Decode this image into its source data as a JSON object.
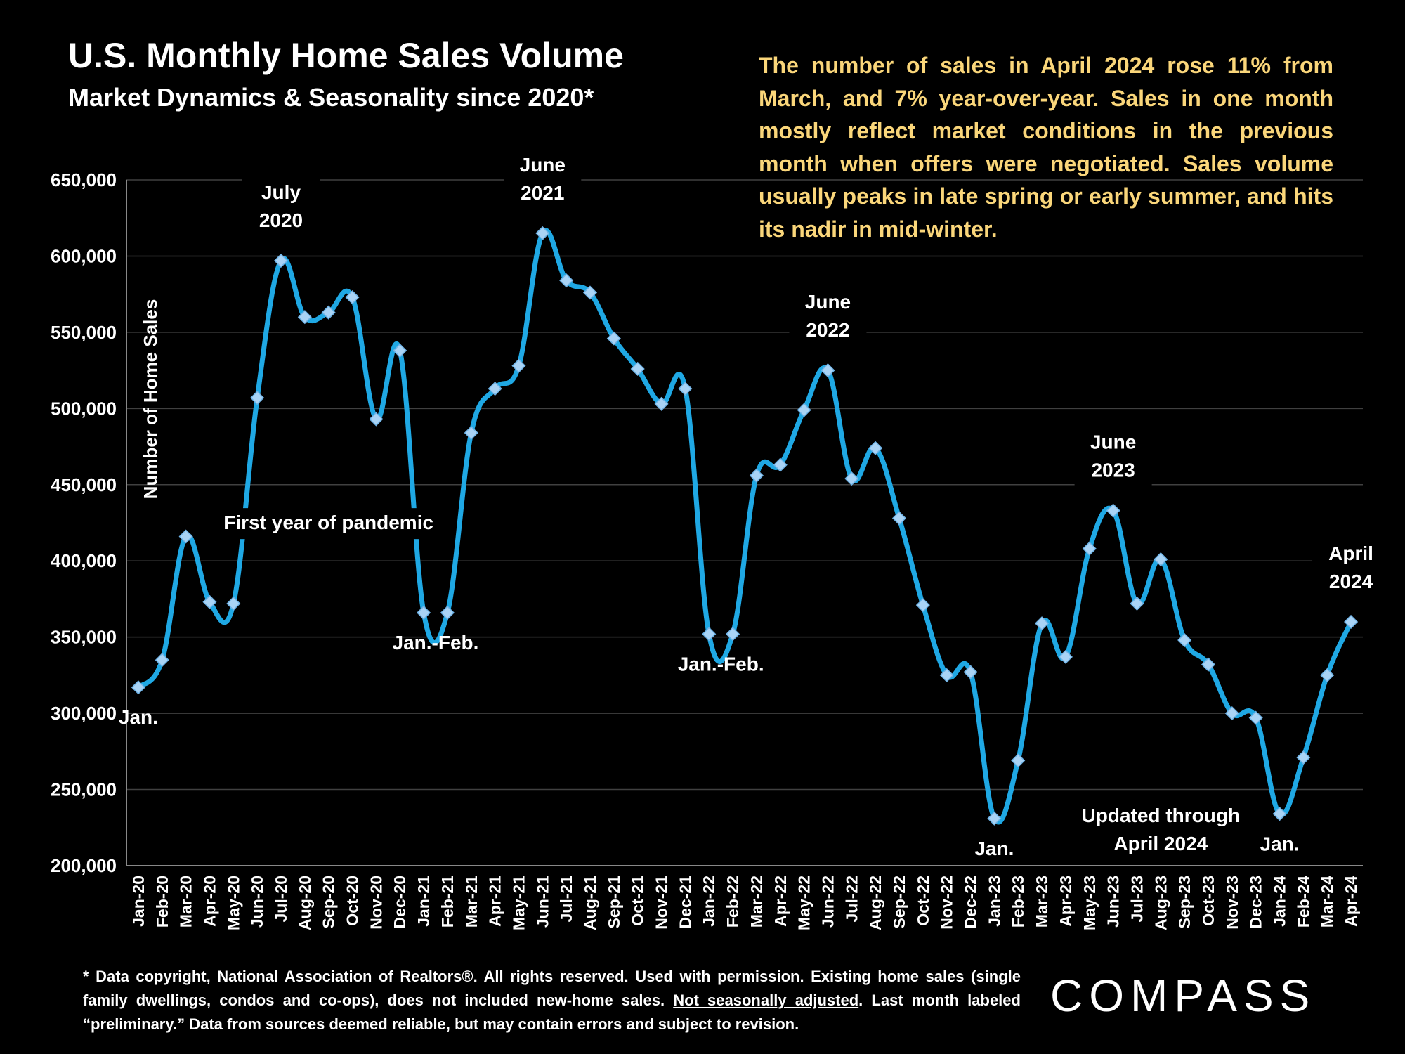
{
  "header": {
    "title": "U.S. Monthly Home Sales Volume",
    "subtitle": "Market Dynamics & Seasonality since 2020*"
  },
  "commentary": "The number of sales in April 2024 rose 11% from March, and 7% year-over-year. Sales in one month mostly reflect market conditions in the previous month when offers were negotiated. Sales volume usually peaks in late spring or early summer, and hits its nadir in mid-winter.",
  "footnote": {
    "part1": "* Data copyright, National Association of Realtors®. All rights reserved. Used with permission. Existing home sales (single family dwellings, condos and co-ops), does not included new-home sales. ",
    "underlined": "Not seasonally adjusted",
    "part2": ". Last month labeled “preliminary.” Data from sources deemed reliable, but may contain errors and subject to revision."
  },
  "logo": "COMPASS",
  "colors": {
    "line": "#1fa8e4",
    "marker": "#a9d3f5",
    "commentary": "#fad67a",
    "grid": "#404040"
  },
  "chart_data": {
    "type": "line",
    "ylabel": "Number of Home Sales",
    "ylim": [
      200000,
      650000
    ],
    "yticks": [
      200000,
      250000,
      300000,
      350000,
      400000,
      450000,
      500000,
      550000,
      600000,
      650000
    ],
    "ytick_labels": [
      "200,000",
      "250,000",
      "300,000",
      "350,000",
      "400,000",
      "450,000",
      "500,000",
      "550,000",
      "600,000",
      "650,000"
    ],
    "grid": true,
    "x": [
      "Jan-20",
      "Feb-20",
      "Mar-20",
      "Apr-20",
      "May-20",
      "Jun-20",
      "Jul-20",
      "Aug-20",
      "Sep-20",
      "Oct-20",
      "Nov-20",
      "Dec-20",
      "Jan-21",
      "Feb-21",
      "Mar-21",
      "Apr-21",
      "May-21",
      "Jun-21",
      "Jul-21",
      "Aug-21",
      "Sep-21",
      "Oct-21",
      "Nov-21",
      "Dec-21",
      "Jan-22",
      "Feb-22",
      "Mar-22",
      "Apr-22",
      "May-22",
      "Jun-22",
      "Jul-22",
      "Aug-22",
      "Sep-22",
      "Oct-22",
      "Nov-22",
      "Dec-22",
      "Jan-23",
      "Feb-23",
      "Mar-23",
      "Apr-23",
      "May-23",
      "Jun-23",
      "Jul-23",
      "Aug-23",
      "Sep-23",
      "Oct-23",
      "Nov-23",
      "Dec-23",
      "Jan-24",
      "Feb-24",
      "Mar-24",
      "Apr-24"
    ],
    "series": [
      {
        "values": [
          317000,
          335000,
          416000,
          373000,
          372000,
          507000,
          597000,
          560000,
          563000,
          573000,
          493000,
          538000,
          366000,
          366000,
          484000,
          513000,
          528000,
          615000,
          584000,
          576000,
          546000,
          526000,
          503000,
          513000,
          352000,
          352000,
          456000,
          463000,
          499000,
          525000,
          454000,
          474000,
          428000,
          371000,
          325000,
          327000,
          231000,
          269000,
          359000,
          337000,
          408000,
          433000,
          372000,
          401000,
          348000,
          332000,
          300000,
          297000,
          234000,
          271000,
          325000,
          360000
        ]
      }
    ],
    "annotations": [
      {
        "index": 6,
        "value": 597000,
        "lines": [
          "July",
          "2020"
        ]
      },
      {
        "index": 17,
        "value": 615000,
        "lines": [
          "June",
          "2021"
        ]
      },
      {
        "index": 29,
        "value": 525000,
        "lines": [
          "June",
          "2022"
        ]
      },
      {
        "index": 41,
        "value": 433000,
        "lines": [
          "June",
          "2023"
        ]
      },
      {
        "index": 51,
        "value": 360000,
        "lines": [
          "April",
          "2024"
        ]
      },
      {
        "index": 0,
        "value": 317000,
        "lines": [
          "Jan."
        ]
      },
      {
        "index": 12.5,
        "value": 366000,
        "lines": [
          "Jan.-Feb."
        ]
      },
      {
        "index": 24.5,
        "value": 352000,
        "lines": [
          "Jan.-Feb."
        ]
      },
      {
        "index": 36,
        "value": 231000,
        "lines": [
          "Jan."
        ]
      },
      {
        "index": 48,
        "value": 234000,
        "lines": [
          "Jan."
        ]
      },
      {
        "index": 8,
        "value": 430000,
        "lines": [
          "First year of pandemic"
        ]
      },
      {
        "index": 43,
        "value": 225000,
        "lines": [
          "Updated through",
          "April 2024"
        ]
      }
    ]
  }
}
